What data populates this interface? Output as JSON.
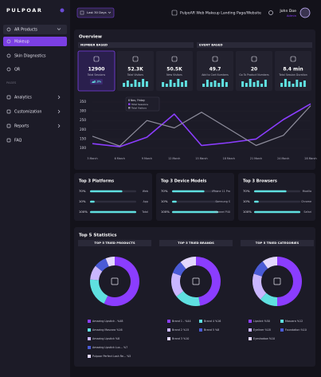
{
  "sidebar": {
    "logo": "PULPOAR",
    "menu": [
      "AR Products",
      "Makeup",
      "Skin Diagnostics",
      "QR"
    ],
    "section": "PAGES",
    "pages": [
      "Analytics",
      "Customization",
      "Reports",
      "FAQ"
    ]
  },
  "header": {
    "range": "Last 30 Days",
    "site": "PulpoAR Web Makeup Landing Page/Website",
    "user": "John Doe",
    "role": "Admin"
  },
  "overview": {
    "title": "Overview",
    "number_based": "NUMBER BASED",
    "event_based": "EVENT BASED",
    "cards": [
      {
        "value": "12900",
        "label": "Total Sessions",
        "change": "8.3%"
      },
      {
        "value": "52.3K",
        "label": "Total Visitors",
        "spark": [
          5,
          8,
          4,
          9,
          6,
          10,
          7
        ]
      },
      {
        "value": "50.5K",
        "label": "New Visitors",
        "spark": [
          6,
          4,
          9,
          5,
          10,
          6,
          8
        ]
      },
      {
        "value": "49.7",
        "label": "Add to Cart Numbers",
        "spark": [
          4,
          9,
          6,
          8,
          5,
          10,
          6
        ]
      },
      {
        "value": "20",
        "label": "Go To Product Numbers",
        "spark": [
          7,
          5,
          10,
          6,
          8,
          4,
          9
        ]
      },
      {
        "value": "8.4 min",
        "label": "Total Session Duration",
        "spark": [
          5,
          10,
          7,
          4,
          9,
          6,
          8
        ]
      }
    ]
  },
  "top5_title": "Top 5 Statistics",
  "chart_data": [
    {
      "type": "line",
      "categories": [
        "3 March",
        "6 March",
        "9 March",
        "12 March",
        "15 March",
        "18 March",
        "21 March",
        "24 March",
        "28 March"
      ],
      "series": [
        {
          "name": "Total Sessions",
          "color": "#8b3dff",
          "values": [
            125,
            108,
            160,
            285,
            115,
            130,
            150,
            255,
            340
          ]
        },
        {
          "name": "Total Visitors",
          "color": "#8e8d9c",
          "values": [
            165,
            112,
            250,
            210,
            295,
            205,
            115,
            170,
            330
          ]
        }
      ],
      "ylim": [
        100,
        350
      ],
      "yticks": [
        100,
        150,
        200,
        250,
        300,
        350
      ],
      "annotations": [
        "8 Nov, Friday"
      ]
    },
    {
      "type": "hbar",
      "title": "Top 3 Platforms",
      "categories": [
        "Web",
        "App",
        "Total"
      ],
      "values": [
        70,
        10,
        100
      ],
      "value_labels": [
        "70%",
        "10%",
        "100%"
      ],
      "xlim": [
        0,
        100
      ],
      "color": "#5fe0e0"
    },
    {
      "type": "hbar",
      "title": "Top 3 Device Models",
      "categories": [
        "iPhone 11 Pro",
        "Samsung S",
        "Huawei P40"
      ],
      "values": [
        70,
        10,
        100
      ],
      "value_labels": [
        "70%",
        "10%",
        "100%"
      ],
      "xlim": [
        0,
        100
      ],
      "color": "#5fe0e0"
    },
    {
      "type": "hbar",
      "title": "Top 3 Browsers",
      "categories": [
        "Mozilla",
        "Chrome",
        "Safari"
      ],
      "values": [
        70,
        10,
        100
      ],
      "value_labels": [
        "70%",
        "10%",
        "100%"
      ],
      "xlim": [
        0,
        100
      ],
      "color": "#5fe0e0"
    },
    {
      "type": "pie",
      "title": "TOP 5 TRIED PRODUCTS",
      "categories": [
        "Amazing Lipstick -",
        "Amazing Mascara",
        "Amazing Lipstick",
        "Amazing Lipstick Lux...",
        "Pulpoar Perfect Lash Re..."
      ],
      "values": [
        48,
        16,
        8,
        7,
        5
      ],
      "value_labels": [
        "%48",
        "%16",
        "%8",
        "%7",
        "%5"
      ],
      "colors": [
        "#8b3dff",
        "#5fe0e0",
        "#c9b6ff",
        "#4a5bd6",
        "#e3d8ff"
      ]
    },
    {
      "type": "pie",
      "title": "TOP 5 TRIED BRANDS",
      "categories": [
        "Brand 1 -",
        "Brand 4",
        "Brand 2",
        "Brand 5",
        "Brand 3"
      ],
      "values": [
        44,
        16,
        15,
        8,
        10
      ],
      "value_labels": [
        "%44",
        "%16",
        "%15",
        "%8",
        "%10"
      ],
      "colors": [
        "#8b3dff",
        "#5fe0e0",
        "#c9b6ff",
        "#4a5bd6",
        "#e3d8ff"
      ]
    },
    {
      "type": "pie",
      "title": "TOP 5 TRIED CATEGORIES",
      "categories": [
        "Lipstick",
        "Mascara",
        "Eyeliner",
        "Foundation",
        "Eyeshadow"
      ],
      "values": [
        50,
        12,
        18,
        10,
        10
      ],
      "value_labels": [
        "%50",
        "%12",
        "%18",
        "%10",
        "%10"
      ],
      "colors": [
        "#8b3dff",
        "#5fe0e0",
        "#c9b6ff",
        "#4a5bd6",
        "#e3d8ff"
      ]
    }
  ]
}
